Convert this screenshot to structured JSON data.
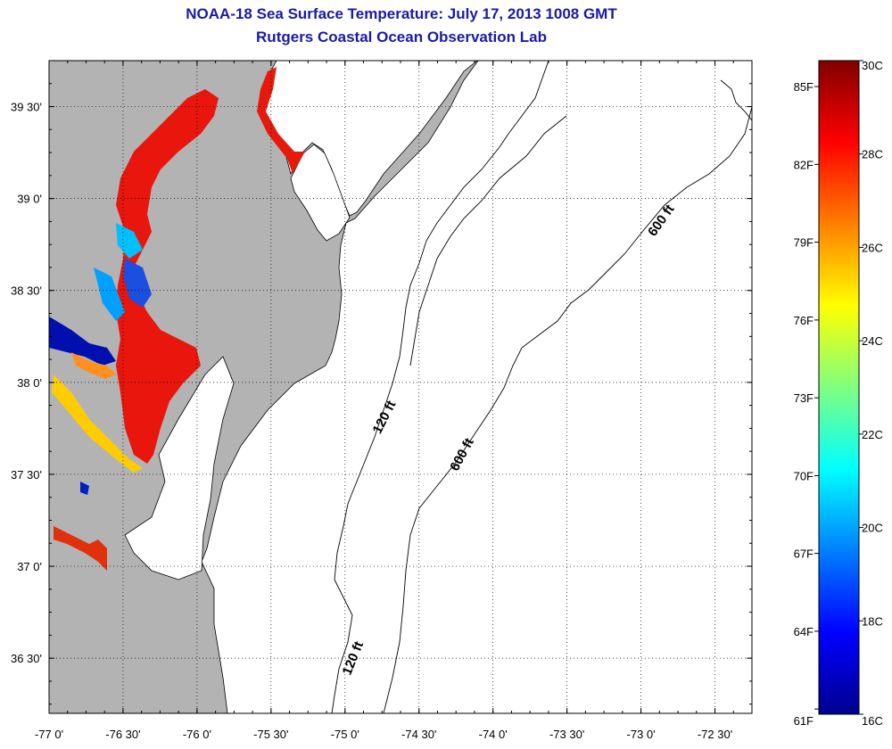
{
  "header": {
    "title": "NOAA-18 Sea Surface Temperature:  July 17, 2013 1008 GMT",
    "subtitle": "Rutgers Coastal Ocean Observation Lab"
  },
  "map": {
    "lon_range": [
      -77.0,
      -72.25
    ],
    "lat_range": [
      36.2,
      39.75
    ],
    "lon_ticks": [
      {
        "value": -77.0,
        "label": "-77 0'"
      },
      {
        "value": -76.5,
        "label": "-76 30'"
      },
      {
        "value": -76.0,
        "label": "-76 0'"
      },
      {
        "value": -75.5,
        "label": "-75 30'"
      },
      {
        "value": -75.0,
        "label": "-75 0'"
      },
      {
        "value": -74.5,
        "label": "-74 30'"
      },
      {
        "value": -74.0,
        "label": "-74 0'"
      },
      {
        "value": -73.5,
        "label": "-73 30'"
      },
      {
        "value": -73.0,
        "label": "-73 0'"
      },
      {
        "value": -72.5,
        "label": "-72 30'"
      }
    ],
    "lat_ticks": [
      {
        "value": 39.5,
        "label": "39 30'"
      },
      {
        "value": 39.0,
        "label": "39 0'"
      },
      {
        "value": 38.5,
        "label": "38 30'"
      },
      {
        "value": 38.0,
        "label": "38 0'"
      },
      {
        "value": 37.5,
        "label": "37 30'"
      },
      {
        "value": 37.0,
        "label": "37 0'"
      },
      {
        "value": 36.5,
        "label": "36 30'"
      }
    ],
    "grid": "dotted",
    "land_color": "#b3b3b3",
    "water_color": "#ffffff",
    "contour_labels": [
      {
        "text": "120 ft"
      },
      {
        "text": "120 ft"
      },
      {
        "text": "600 ft"
      },
      {
        "text": "600 ft"
      }
    ]
  },
  "colorbar": {
    "celsius": [
      {
        "value": 30,
        "label": "30C"
      },
      {
        "value": 28,
        "label": "28C"
      },
      {
        "value": 26,
        "label": "26C"
      },
      {
        "value": 24,
        "label": "24C"
      },
      {
        "value": 22,
        "label": "22C"
      },
      {
        "value": 20,
        "label": "20C"
      },
      {
        "value": 18,
        "label": "18C"
      },
      {
        "value": 16,
        "label": "16C"
      }
    ],
    "fahrenheit": [
      {
        "value": 85,
        "label": "85F"
      },
      {
        "value": 82,
        "label": "82F"
      },
      {
        "value": 79,
        "label": "79F"
      },
      {
        "value": 76,
        "label": "76F"
      },
      {
        "value": 73,
        "label": "73F"
      },
      {
        "value": 70,
        "label": "70F"
      },
      {
        "value": 67,
        "label": "67F"
      },
      {
        "value": 64,
        "label": "64F"
      },
      {
        "value": 61,
        "label": "61F"
      }
    ],
    "range_c": [
      16,
      30
    ],
    "colormap": [
      "#00008f",
      "#0000ff",
      "#00ffff",
      "#ffff00",
      "#ff0000",
      "#800000"
    ]
  }
}
